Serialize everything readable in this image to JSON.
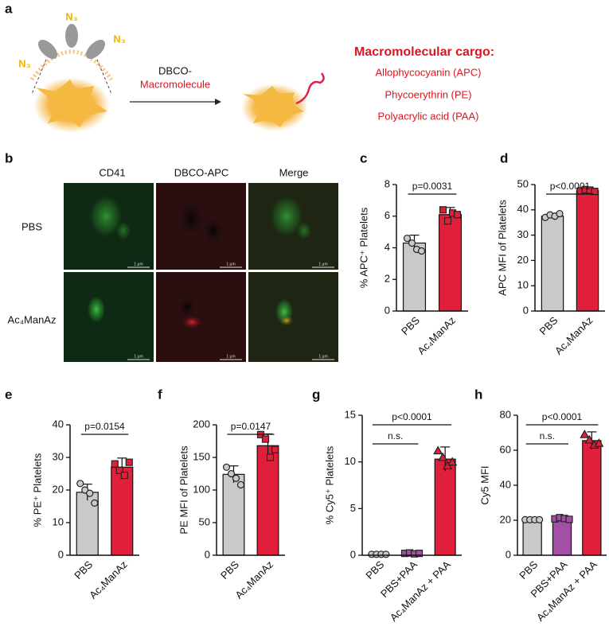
{
  "panels": {
    "a": {
      "label": "a",
      "azide_labels": [
        "N₃",
        "N₃",
        "N₃"
      ],
      "reagent": [
        "DBCO-",
        "Macromolecule"
      ],
      "cargo_title": "Macromolecular cargo:",
      "cargo": [
        "Allophycocyanin (APC)",
        "Phycoerythrin (PE)",
        "Polyacrylic acid (PAA)"
      ]
    },
    "b": {
      "label": "b",
      "columns": [
        "CD41",
        "DBCO-APC",
        "Merge"
      ],
      "rows": [
        "PBS",
        "Ac₄ManAz"
      ],
      "scale_bars": [
        "1 μm",
        "1 μm",
        "1 μm",
        "1 μm",
        "1 μm",
        "1 μm"
      ]
    }
  },
  "chart_data": [
    {
      "type": "bar",
      "label": "c",
      "ylabel": "% APC⁺ Platelets",
      "categories": [
        "PBS",
        "Ac₄ManAz"
      ],
      "colors": [
        "#c9c9c9",
        "#e0203a"
      ],
      "markers": [
        "circle",
        "square"
      ],
      "values": [
        4.3,
        6.1
      ],
      "errors": [
        0.5,
        0.45
      ],
      "points": [
        [
          4.6,
          4.3,
          3.9,
          3.8
        ],
        [
          6.4,
          5.7,
          6.2,
          6.1
        ]
      ],
      "ylim": [
        0,
        8
      ],
      "yticks": [
        0,
        2,
        4,
        6,
        8
      ],
      "annotations": [
        {
          "text": "p=0.0031",
          "from": 0,
          "to": 1
        }
      ]
    },
    {
      "type": "bar",
      "label": "d",
      "ylabel": "APC MFI of Platelets",
      "categories": [
        "PBS",
        "Ac₄ManAz"
      ],
      "colors": [
        "#c9c9c9",
        "#e0203a"
      ],
      "markers": [
        "circle",
        "square"
      ],
      "values": [
        37.5,
        47.6
      ],
      "errors": [
        0.8,
        0.5
      ],
      "points": [
        [
          37,
          38,
          37.5,
          38.5
        ],
        [
          47.5,
          48,
          47.8,
          47.3
        ]
      ],
      "ylim": [
        0,
        50
      ],
      "yticks": [
        0,
        10,
        20,
        30,
        40,
        50
      ],
      "annotations": [
        {
          "text": "p<0.0001",
          "from": 0,
          "to": 1
        }
      ]
    },
    {
      "type": "bar",
      "label": "e",
      "ylabel": "% PE⁺ Platelets",
      "categories": [
        "PBS",
        "Ac₄ManAz"
      ],
      "colors": [
        "#c9c9c9",
        "#e0203a"
      ],
      "markers": [
        "circle",
        "square"
      ],
      "values": [
        19.3,
        27
      ],
      "errors": [
        2.5,
        2.8
      ],
      "points": [
        [
          22,
          20,
          19,
          16
        ],
        [
          28,
          26,
          24.5,
          28.5
        ]
      ],
      "ylim": [
        0,
        40
      ],
      "yticks": [
        0,
        10,
        20,
        30,
        40
      ],
      "annotations": [
        {
          "text": "p=0.0154",
          "from": 0,
          "to": 1
        }
      ]
    },
    {
      "type": "bar",
      "label": "f",
      "ylabel": "PE MFI of Platelets",
      "categories": [
        "PBS",
        "Ac₄ManAz"
      ],
      "colors": [
        "#c9c9c9",
        "#e0203a"
      ],
      "markers": [
        "circle",
        "square"
      ],
      "values": [
        124,
        168
      ],
      "errors": [
        13,
        18
      ],
      "points": [
        [
          135,
          125,
          118,
          108
        ],
        [
          185,
          178,
          150,
          162
        ]
      ],
      "ylim": [
        0,
        200
      ],
      "yticks": [
        0,
        50,
        100,
        150,
        200
      ],
      "annotations": [
        {
          "text": "p=0.0147",
          "from": 0,
          "to": 1
        }
      ]
    },
    {
      "type": "bar",
      "label": "g",
      "ylabel": "% Cy5⁺ Platelets",
      "categories": [
        "PBS",
        "PBS+PAA",
        "Ac₄ManAz + PAA"
      ],
      "colors": [
        "#c9c9c9",
        "#a44fa6",
        "#e0203a"
      ],
      "markers": [
        "circle",
        "square",
        "triangle"
      ],
      "values": [
        0.1,
        0.2,
        10.3
      ],
      "errors": [
        0.05,
        0.1,
        1.3
      ],
      "points": [
        [
          0.1,
          0.1,
          0.1,
          0.1
        ],
        [
          0.2,
          0.25,
          0.15,
          0.2
        ],
        [
          11.2,
          10.5,
          9.6,
          10.0
        ]
      ],
      "ylim": [
        0,
        15
      ],
      "yticks": [
        0,
        5,
        10,
        15
      ],
      "annotations": [
        {
          "text": "p<0.0001",
          "from": 0,
          "to": 2
        },
        {
          "text": "n.s.",
          "from": 0,
          "to": 1
        }
      ]
    },
    {
      "type": "bar",
      "label": "h",
      "ylabel": "Cy5 MFI",
      "categories": [
        "PBS",
        "PBS+PAA",
        "Ac₄ManAz + PAA"
      ],
      "colors": [
        "#c9c9c9",
        "#a44fa6",
        "#e0203a"
      ],
      "markers": [
        "circle",
        "square",
        "triangle"
      ],
      "values": [
        20.3,
        21,
        65.5
      ],
      "errors": [
        0.3,
        1,
        5
      ],
      "points": [
        [
          20.3,
          20.3,
          20.3,
          20.3
        ],
        [
          20.8,
          21.5,
          21,
          20.5
        ],
        [
          69,
          66,
          63,
          64
        ]
      ],
      "ylim": [
        0,
        80
      ],
      "yticks": [
        0,
        20,
        40,
        60,
        80
      ],
      "annotations": [
        {
          "text": "p<0.0001",
          "from": 0,
          "to": 2
        },
        {
          "text": "n.s.",
          "from": 0,
          "to": 1
        }
      ]
    }
  ]
}
